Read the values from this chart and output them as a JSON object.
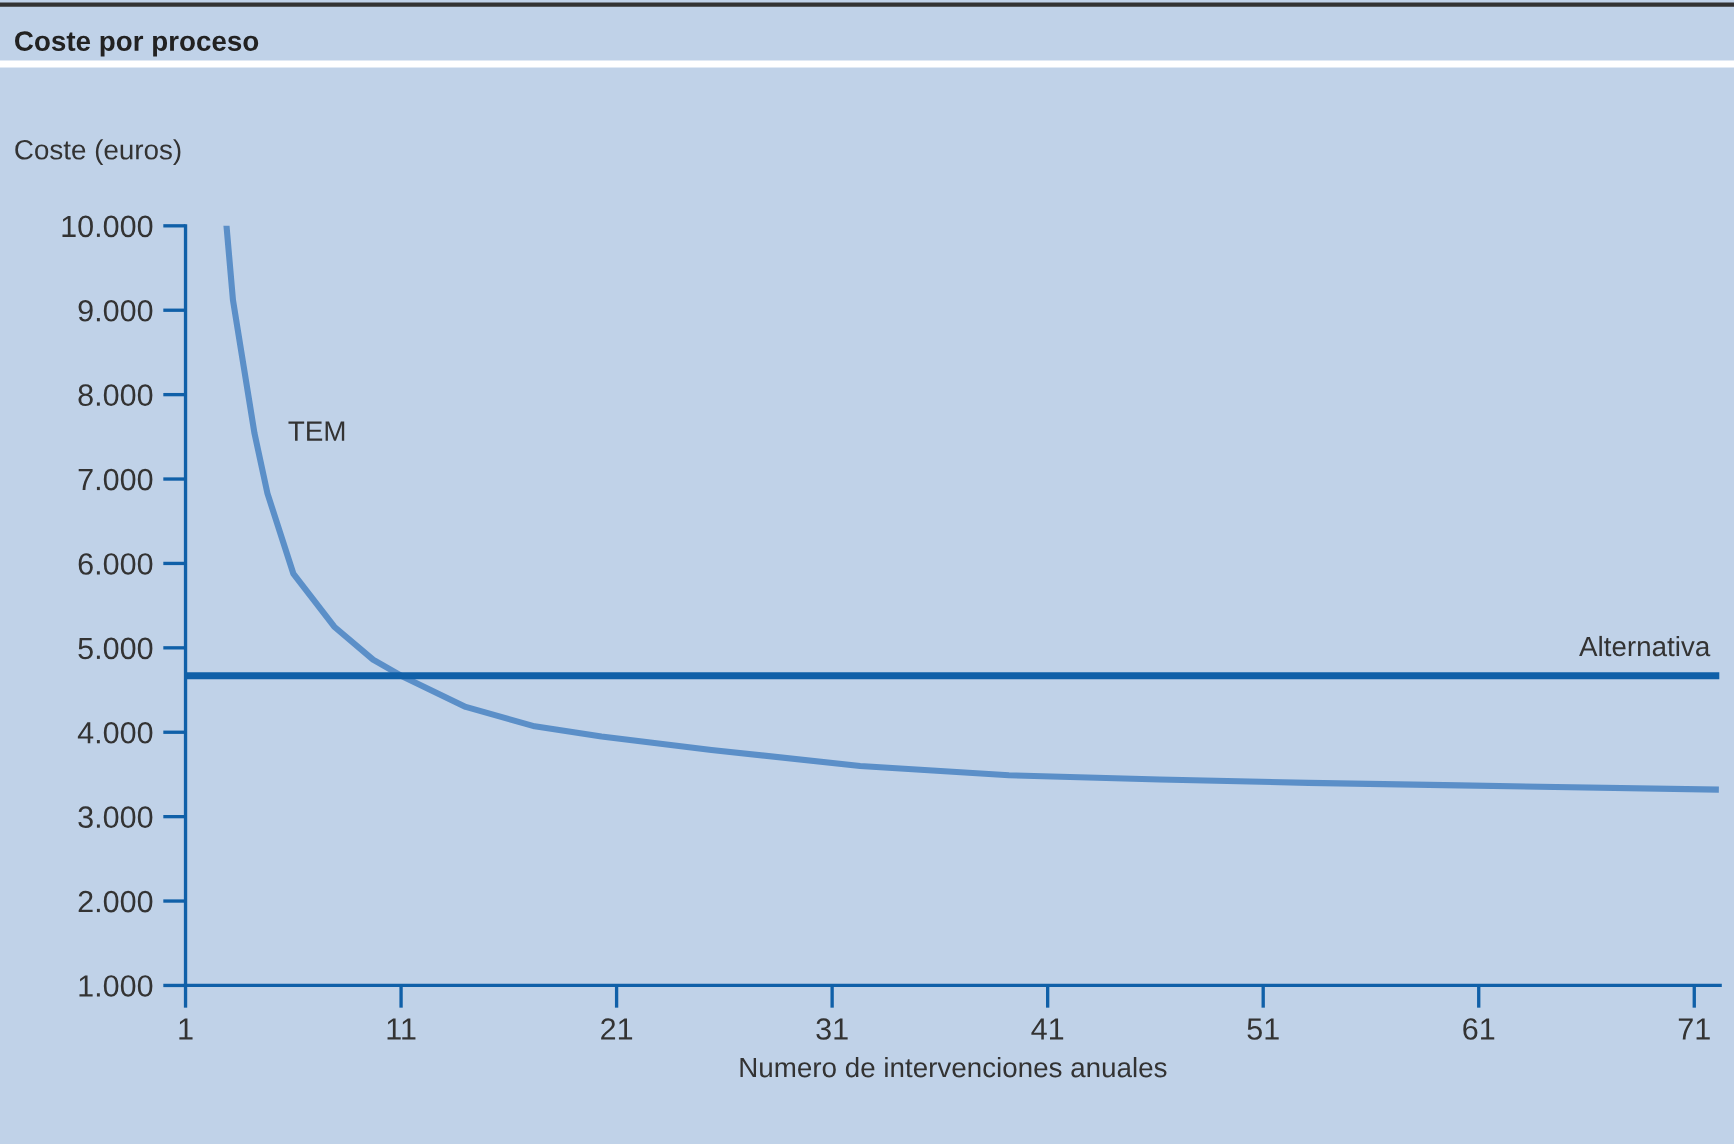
{
  "chart_data": {
    "type": "line",
    "title": "Coste por proceso",
    "ylabel": "Coste (euros)",
    "xlabel": "Numero de intervenciones anuales",
    "series": [
      {
        "name": "TEM",
        "color": "#5b8fc8",
        "x": [
          2.9,
          3.2,
          3.7,
          4.2,
          4.8,
          6.0,
          7.9,
          9.7,
          11,
          14,
          17.2,
          20.3,
          25.4,
          32.3,
          39.2,
          46.2,
          53.1,
          60.1,
          72
        ],
        "values": [
          10000,
          9120,
          8330,
          7540,
          6830,
          5880,
          5250,
          4860,
          4670,
          4300,
          4070,
          3950,
          3790,
          3600,
          3490,
          3440,
          3400,
          3370,
          3320
        ]
      },
      {
        "name": "Alternativa",
        "color": "#1060a8",
        "x": [
          1,
          72
        ],
        "values": [
          4670,
          4670
        ]
      }
    ],
    "xlim": [
      1,
      72.2
    ],
    "ylim": [
      1000,
      10000
    ],
    "xticks": [
      1,
      11,
      21,
      31,
      41,
      51,
      61,
      71
    ],
    "yticks": [
      {
        "value": 1000,
        "label": "1.000"
      },
      {
        "value": 2000,
        "label": "2.000"
      },
      {
        "value": 3000,
        "label": "3.000"
      },
      {
        "value": 4000,
        "label": "4.000"
      },
      {
        "value": 5000,
        "label": "5.000"
      },
      {
        "value": 6000,
        "label": "6.000"
      },
      {
        "value": 7000,
        "label": "7.000"
      },
      {
        "value": 8000,
        "label": "8.000"
      },
      {
        "value": 9000,
        "label": "9.000"
      },
      {
        "value": 10000,
        "label": "10.000"
      }
    ],
    "grid": false,
    "legend": false,
    "marker": "none",
    "line_style": "solid"
  }
}
